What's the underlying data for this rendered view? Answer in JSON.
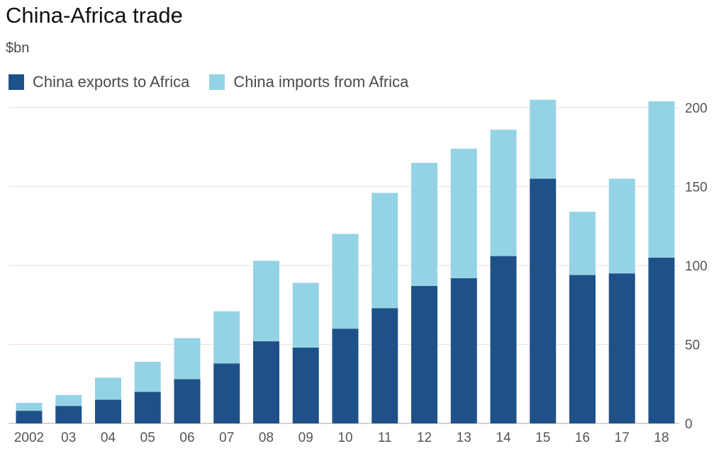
{
  "chart_data": {
    "type": "bar",
    "stacked": true,
    "title": "China-Africa trade",
    "subtitle": "$bn",
    "categories": [
      "2002",
      "03",
      "04",
      "05",
      "06",
      "07",
      "08",
      "09",
      "10",
      "11",
      "12",
      "13",
      "14",
      "15",
      "16",
      "17",
      "18"
    ],
    "series": [
      {
        "name": "China exports to Africa",
        "color": "#1f5189",
        "values": [
          8,
          11,
          15,
          20,
          28,
          38,
          52,
          48,
          60,
          73,
          87,
          92,
          106,
          155,
          94,
          95,
          105
        ]
      },
      {
        "name": "China imports from Africa",
        "color": "#94d3e6",
        "values": [
          5,
          7,
          14,
          19,
          26,
          33,
          51,
          41,
          60,
          73,
          78,
          82,
          80,
          50,
          40,
          60,
          99
        ]
      }
    ],
    "ylim": [
      0,
      200
    ],
    "yticks": [
      0,
      50,
      100,
      150,
      200
    ],
    "y_axis_side": "right",
    "grid": true,
    "legend": "top-left"
  }
}
